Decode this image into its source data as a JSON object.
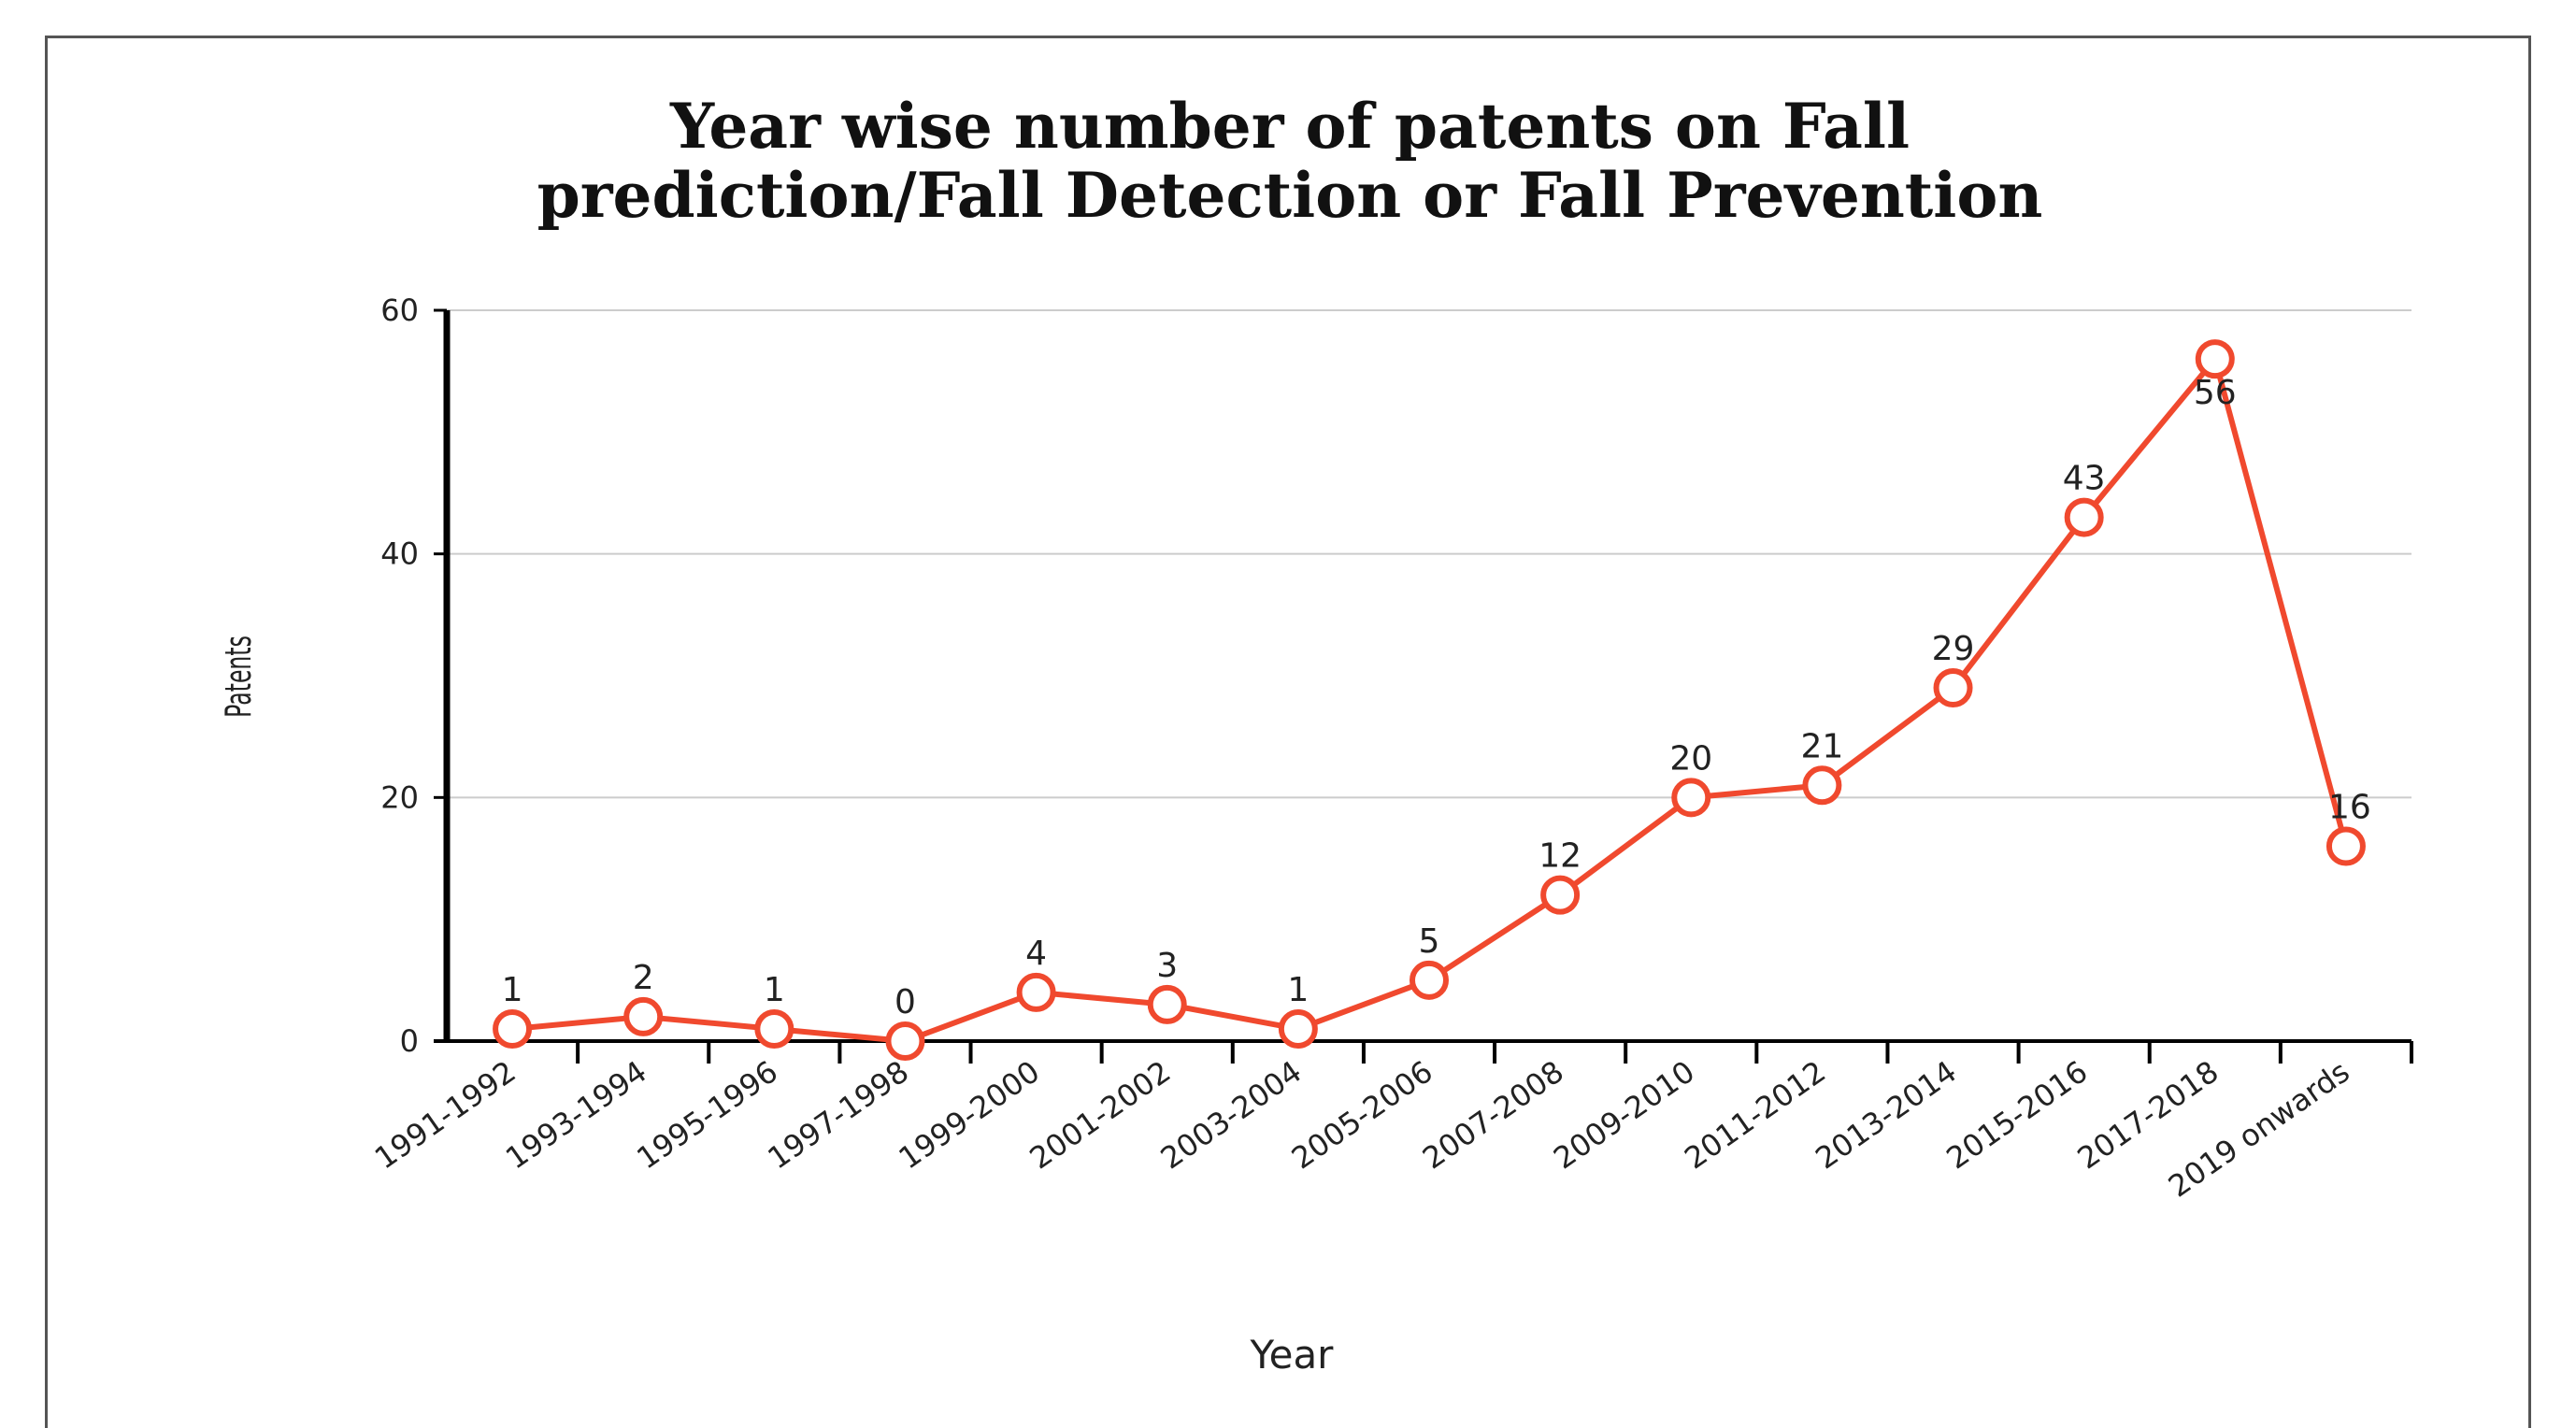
{
  "chart_data": {
    "type": "line",
    "title_lines": [
      "Year wise number of patents on Fall",
      "prediction/Fall Detection or Fall Prevention"
    ],
    "xlabel": "Year",
    "ylabel": "Patents",
    "ylim": [
      0,
      60
    ],
    "yticks": [
      "0",
      "20",
      "40",
      "60"
    ],
    "grid": true,
    "categories": [
      "1991-1992",
      "1993-1994",
      "1995-1996",
      "1997-1998",
      "1999-2000",
      "2001-2002",
      "2003-2004",
      "2005-2006",
      "2007-2008",
      "2009-2010",
      "2011-2012",
      "2013-2014",
      "2015-2016",
      "2017-2018",
      "2019 onwards"
    ],
    "values": [
      1,
      2,
      1,
      0,
      4,
      3,
      1,
      5,
      12,
      20,
      21,
      29,
      43,
      56,
      16
    ],
    "data_labels": [
      "1",
      "2",
      "1",
      "0",
      "4",
      "3",
      "1",
      "5",
      "12",
      "20",
      "21",
      "29",
      "43",
      "56",
      "16"
    ],
    "colors": {
      "line": "#f0492e",
      "marker_fill": "#ffffff",
      "grid": "#cccccc",
      "axis": "#000000"
    }
  }
}
